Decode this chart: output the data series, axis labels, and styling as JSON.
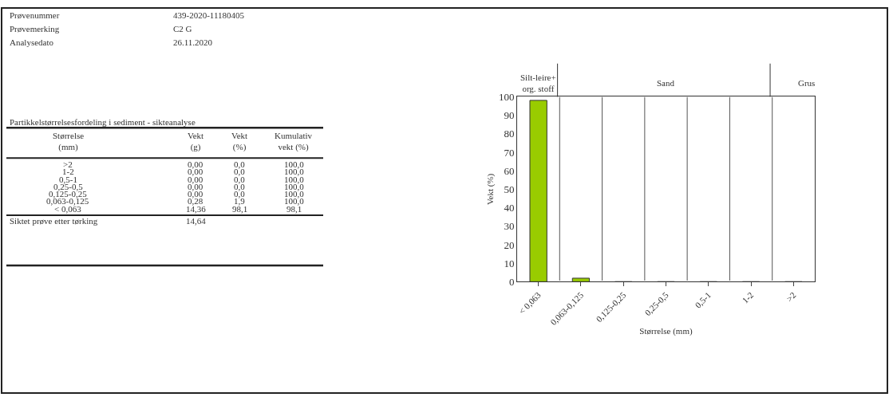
{
  "chart_data": [
    {
      "type": "other",
      "title": "Partikkelstørrelsesfordeling i sediment - sikteanalyse",
      "annotations": [
        "Prøvenummer",
        "439-2020-11180405",
        "Prøvemerking",
        "C2 G",
        "Analysedato",
        "26.11.2020",
        "Størrelse\n(mm)",
        "Vekt\n(g)",
        "Vekt\n(%)",
        "Kumulativ\nvekt (%)",
        ">2",
        "0,00",
        "0,0",
        "100,0",
        "1-2",
        "0,00",
        "0,0",
        "100,0",
        "0,5-1",
        "0,00",
        "0,0",
        "100,0",
        "0,25-0,5",
        "0,00",
        "0,0",
        "100,0",
        "0,125-0,25",
        "0,00",
        "0,0",
        "100,0",
        "0,063-0,125",
        "0,28",
        "1,9",
        "100,0",
        "< 0,063",
        "14,36",
        "98,1",
        "98,1",
        "Siktet prøve etter tørking",
        "14,64"
      ]
    },
    {
      "type": "bar",
      "categories": [
        "< 0,063",
        "0,063-0,125",
        "0,125-0,25",
        "0,25-0,5",
        "0,5-1",
        "1-2",
        ">2"
      ],
      "values": [
        98.1,
        1.9,
        0,
        0,
        0,
        0,
        0
      ],
      "color": "#99cc00",
      "ylim": [
        0,
        100
      ],
      "yticks": [
        0,
        10,
        20,
        30,
        40,
        50,
        60,
        70,
        80,
        90,
        100
      ],
      "xlabel": "Størrelse (mm)",
      "ylabel": "Vekt (%)",
      "grid": "x",
      "annotations": [
        "Silt-leire+\norg. stoff",
        "Sand",
        "Grus"
      ]
    }
  ]
}
